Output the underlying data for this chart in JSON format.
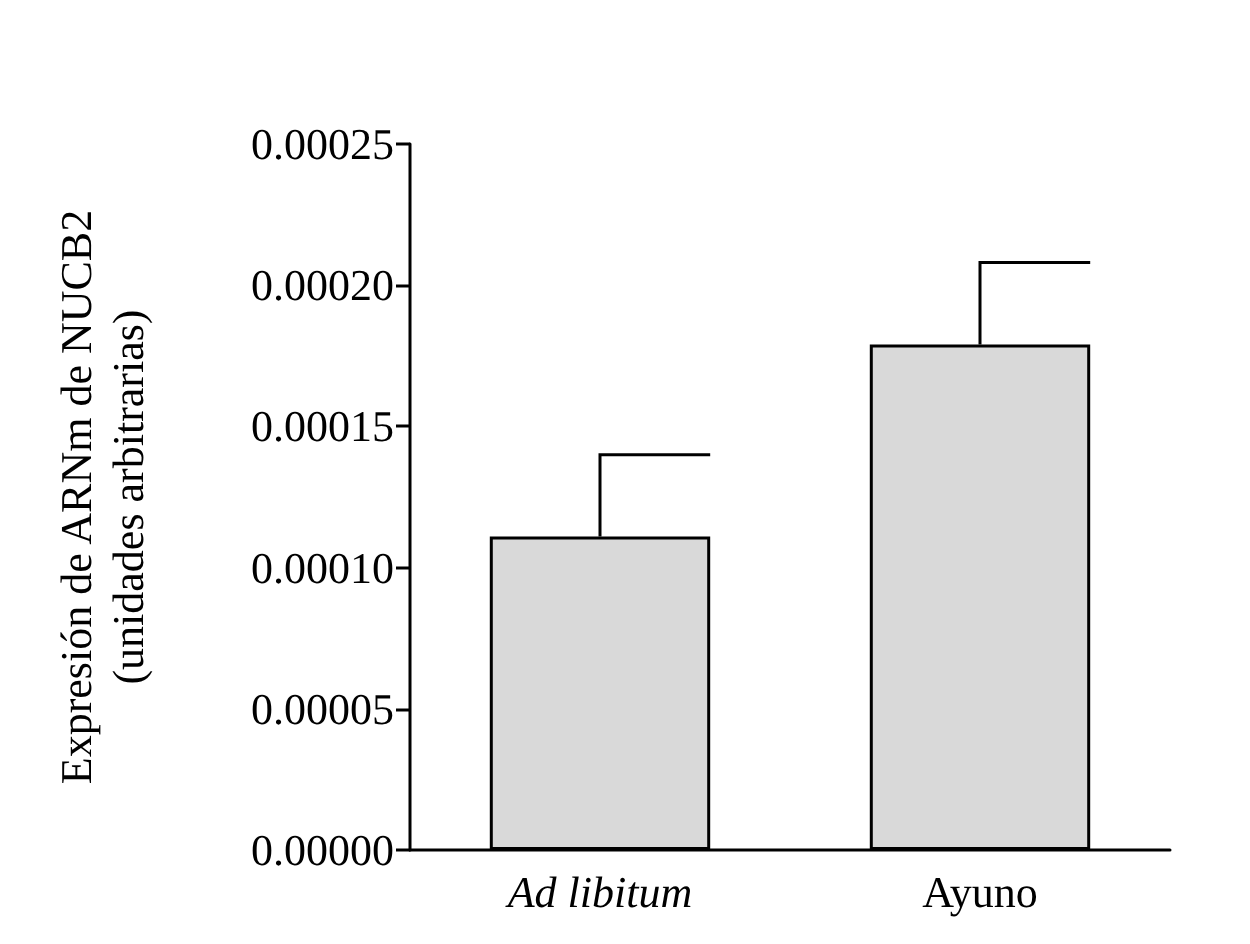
{
  "chart_data": {
    "type": "bar",
    "ylabel": "Expresión de ARNm de NUCB2\n(unidades arbitrarias)",
    "categories": [
      "Ad libitum",
      "Ayuno"
    ],
    "values": [
      0.000111,
      0.000179
    ],
    "errors": [
      [
        0.000111,
        0.00014
      ],
      [
        0.000179,
        0.000208
      ]
    ],
    "color": "#d9d9d9",
    "ylim": [
      0,
      0.00025
    ],
    "yticks": [
      {
        "value": 0,
        "label": "0.00000"
      },
      {
        "value": 5e-05,
        "label": "0.00005"
      },
      {
        "value": 0.0001,
        "label": "0.00010"
      },
      {
        "value": 0.00015,
        "label": "0.00015"
      },
      {
        "value": 0.0002,
        "label": "0.00020"
      },
      {
        "value": 0.00025,
        "label": "0.00025"
      }
    ],
    "grid": false
  }
}
